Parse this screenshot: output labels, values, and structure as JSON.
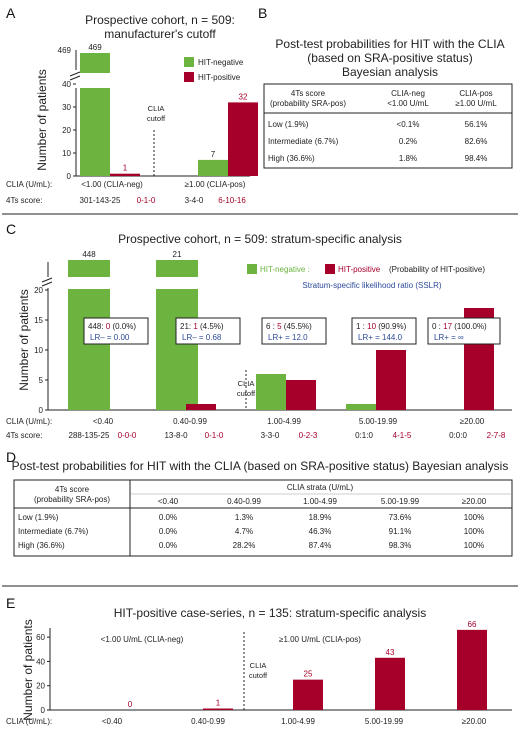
{
  "colors": {
    "green": "#6cb33f",
    "red": "#a6002a",
    "blue": "#2c4a9a",
    "grid": "#222"
  },
  "panelA": {
    "letter": "A",
    "title_line1": "Prospective cohort, n = 509:",
    "title_line2": "manufacturer's cutoff",
    "ylabel": "Number of patients",
    "legend": {
      "neg": "HIT-negative",
      "pos": "HIT-positive"
    },
    "cutoff_label_1": "CLIA",
    "cutoff_label_2": "cutoff",
    "clia_row_label": "CLIA (U/mL):",
    "clia_cats": [
      "<1.00 (CLIA-neg)",
      "≥1.00 (CLIA-pos)"
    ],
    "fourts_row_label": "4Ts score:",
    "fourts_neg": [
      "301-143-25",
      "3-4-0"
    ],
    "fourts_pos": [
      "0-1-0",
      "6-10-16"
    ],
    "y_ticks": [
      "0",
      "10",
      "20",
      "30",
      "40"
    ],
    "y_break_label": "469"
  },
  "panelB": {
    "letter": "B",
    "title_line1": "Post-test probabilities for HIT with the CLIA",
    "title_line2": "(based on SRA-positive status)",
    "title_line3": "Bayesian analysis",
    "head_col0_1": "4Ts score",
    "head_col0_2": "(probability SRA-pos)",
    "head_col1_1": "CLIA-neg",
    "head_col1_2": "<1.00 U/mL",
    "head_col2_1": "CLIA-pos",
    "head_col2_2": "≥1.00 U/mL",
    "rows": [
      [
        "Low (1.9%)",
        "<0.1%",
        "56.1%"
      ],
      [
        "Intermediate (6.7%)",
        "0.2%",
        "82.6%"
      ],
      [
        "High (36.6%)",
        "1.8%",
        "98.4%"
      ]
    ]
  },
  "panelC": {
    "letter": "C",
    "title": "Prospective cohort, n = 509: stratum-specific analysis",
    "ylabel": "Number of patients",
    "legend": {
      "neg": "HIT-negative :",
      "pos": "HIT-positive",
      "pos_note": "(Probability of HIT-positive)"
    },
    "sslr_note": "Stratum-specific likelihood ratio (SSLR)",
    "cutoff_label_1": "CLIA",
    "cutoff_label_2": "cutoff",
    "clia_row_label": "CLIA (U/mL):",
    "fourts_row_label": "4Ts score:",
    "y_ticks": [
      "0",
      "5",
      "10",
      "15",
      "20"
    ],
    "boxes": [
      {
        "neg": "448:",
        "pos": "0",
        "pct": "(0.0%)",
        "lr": "LR– = 0.00"
      },
      {
        "neg": "21:",
        "pos": "1",
        "pct": "(4.5%)",
        "lr": "LR– = 0.68"
      },
      {
        "neg": "6 :",
        "pos": "5",
        "pct": "(45.5%)",
        "lr": "LR+ = 12.0"
      },
      {
        "neg": "1 :",
        "pos": "10",
        "pct": "(90.9%)",
        "lr": "LR+ = 144.0"
      },
      {
        "neg": "0 :",
        "pos": "17",
        "pct": "(100.0%)",
        "lr": "LR+ = ∞"
      }
    ],
    "fourts_neg": [
      "288-135-25",
      "13-8-0",
      "3-3-0",
      "0:1:0",
      "0:0:0"
    ],
    "fourts_pos": [
      "0-0-0",
      "0-1-0",
      "0-2-3",
      "4-1-5",
      "2-7-8"
    ]
  },
  "panelD": {
    "letter": "D",
    "title": "Post-test probabilities for HIT with the CLIA (based on SRA-positive status) Bayesian analysis",
    "head_col0_1": "4Ts score",
    "head_col0_2": "(probability SRA-pos)",
    "strata_label": "CLIA strata (U/mL)",
    "strata": [
      "<0.40",
      "0.40-0.99",
      "1.00-4.99",
      "5.00-19.99",
      "≥20.00"
    ],
    "rows": [
      [
        "Low (1.9%)",
        "0.0%",
        "1.3%",
        "18.9%",
        "73.6%",
        "100%"
      ],
      [
        "Intermediate (6.7%)",
        "0.0%",
        "4.7%",
        "46.3%",
        "91.1%",
        "100%"
      ],
      [
        "High (36.6%)",
        "0.0%",
        "28.2%",
        "87.4%",
        "98.3%",
        "100%"
      ]
    ]
  },
  "panelE": {
    "letter": "E",
    "title": "HIT-positive case-series, n = 135: stratum-specific analysis",
    "ylabel": "Number of patients",
    "neg_label": "<1.00 U/mL (CLIA-neg)",
    "pos_label": "≥1.00 U/mL (CLIA-pos)",
    "cutoff_label_1": "CLIA",
    "cutoff_label_2": "cutoff",
    "clia_row_label": "CLIA (U/mL):",
    "y_ticks": [
      "0",
      "20",
      "40",
      "60"
    ]
  },
  "chart_data": [
    {
      "type": "bar",
      "panel": "A",
      "title": "Prospective cohort, n = 509: manufacturer's cutoff",
      "categories": [
        "<1.00 (CLIA-neg)",
        "≥1.00 (CLIA-pos)"
      ],
      "series": [
        {
          "name": "HIT-negative",
          "values": [
            469,
            7
          ]
        },
        {
          "name": "HIT-positive",
          "values": [
            1,
            32
          ]
        }
      ],
      "ylabel": "Number of patients",
      "ylim": [
        0,
        40
      ],
      "axis_break": true
    },
    {
      "type": "bar",
      "panel": "C",
      "title": "Prospective cohort, n = 509: stratum-specific analysis",
      "categories": [
        "<0.40",
        "0.40-0.99",
        "1.00-4.99",
        "5.00-19.99",
        "≥20.00"
      ],
      "series": [
        {
          "name": "HIT-negative",
          "values": [
            448,
            21,
            6,
            1,
            0
          ]
        },
        {
          "name": "HIT-positive",
          "values": [
            0,
            1,
            5,
            10,
            17
          ]
        }
      ],
      "ylabel": "Number of patients",
      "ylim": [
        0,
        20
      ],
      "axis_break": true
    },
    {
      "type": "bar",
      "panel": "E",
      "title": "HIT-positive case-series, n = 135: stratum-specific analysis",
      "categories": [
        "<0.40",
        "0.40-0.99",
        "1.00-4.99",
        "5.00-19.99",
        "≥20.00"
      ],
      "series": [
        {
          "name": "HIT-positive",
          "values": [
            0,
            1,
            25,
            43,
            66
          ]
        }
      ],
      "ylabel": "Number of patients",
      "ylim": [
        0,
        70
      ]
    }
  ]
}
